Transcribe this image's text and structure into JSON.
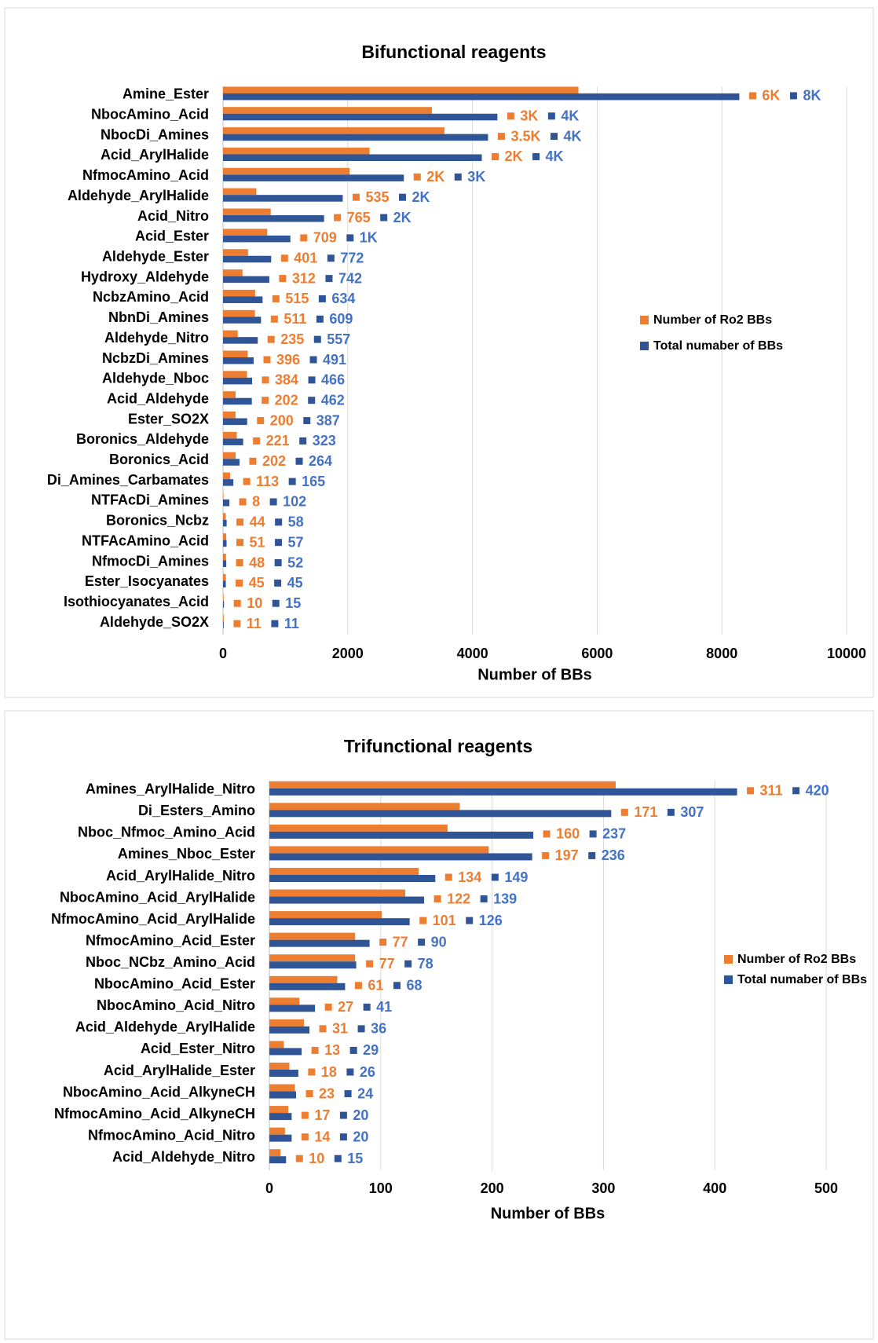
{
  "chart_data": [
    {
      "type": "bar",
      "orientation": "horizontal",
      "title": "Bifunctional reagents",
      "x_label": "Number of BBs",
      "categories": [
        "Amine_Ester",
        "NbocAmino_Acid",
        "NbocDi_Amines",
        "Acid_ArylHalide",
        "NfmocAmino_Acid",
        "Aldehyde_ArylHalide",
        "Acid_Nitro",
        "Acid_Ester",
        "Aldehyde_Ester",
        "Hydroxy_Aldehyde",
        "NcbzAmino_Acid",
        "NbnDi_Amines",
        "Aldehyde_Nitro",
        "NcbzDi_Amines",
        "Aldehyde_Nboc",
        "Acid_Aldehyde",
        "Ester_SO2X",
        "Boronics_Aldehyde",
        "Boronics_Acid",
        "Di_Amines_Carbamates",
        "NTFAcDi_Amines",
        "Boronics_Ncbz",
        "NTFAcAmino_Acid",
        "NfmocDi_Amines",
        "Ester_Isocyanates",
        "Isothiocyanates_Acid",
        "Aldehyde_SO2X"
      ],
      "series": [
        {
          "name": "Number of Ro2 BBs",
          "color": "#ED7D31",
          "label_color": "#ED7D31",
          "values": [
            5700,
            3350,
            3550,
            2350,
            2030,
            535,
            765,
            709,
            401,
            312,
            515,
            511,
            235,
            396,
            384,
            202,
            200,
            221,
            202,
            113,
            8,
            44,
            51,
            48,
            45,
            10,
            11
          ],
          "value_labels": [
            "6K",
            "3K",
            "3.5K",
            "2K",
            "2K",
            "535",
            "765",
            "709",
            "401",
            "312",
            "515",
            "511",
            "235",
            "396",
            "384",
            "202",
            "200",
            "221",
            "202",
            "113",
            "8",
            "44",
            "51",
            "48",
            "45",
            "10",
            "11"
          ]
        },
        {
          "name": "Total numaber of BBs",
          "color": "#2F5597",
          "label_color": "#4472C4",
          "values": [
            8280,
            4400,
            4250,
            4150,
            2900,
            1920,
            1620,
            1080,
            772,
            742,
            634,
            609,
            557,
            491,
            466,
            462,
            387,
            323,
            264,
            165,
            102,
            58,
            57,
            52,
            45,
            15,
            11
          ],
          "value_labels": [
            "8K",
            "4K",
            "4K",
            "4K",
            "3K",
            "2K",
            "2K",
            "1K",
            "772",
            "742",
            "634",
            "609",
            "557",
            "491",
            "466",
            "462",
            "387",
            "323",
            "264",
            "165",
            "102",
            "58",
            "57",
            "52",
            "45",
            "15",
            "11"
          ]
        }
      ],
      "xlim": [
        0,
        10000
      ],
      "xticks": [
        0,
        2000,
        4000,
        6000,
        8000,
        10000
      ],
      "grid": true,
      "legend": "right"
    },
    {
      "type": "bar",
      "orientation": "horizontal",
      "title": "Trifunctional reagents",
      "x_label": "Number of BBs",
      "categories": [
        "Amines_ArylHalide_Nitro",
        "Di_Esters_Amino",
        "Nboc_Nfmoc_Amino_Acid",
        "Amines_Nboc_Ester",
        "Acid_ArylHalide_Nitro",
        "NbocAmino_Acid_ArylHalide",
        "NfmocAmino_Acid_ArylHalide",
        "NfmocAmino_Acid_Ester",
        "Nboc_NCbz_Amino_Acid",
        "NbocAmino_Acid_Ester",
        "NbocAmino_Acid_Nitro",
        "Acid_Aldehyde_ArylHalide",
        "Acid_Ester_Nitro",
        "Acid_ArylHalide_Ester",
        "NbocAmino_Acid_AlkyneCH",
        "NfmocAmino_Acid_AlkyneCH",
        "NfmocAmino_Acid_Nitro",
        "Acid_Aldehyde_Nitro"
      ],
      "series": [
        {
          "name": "Number of Ro2 BBs",
          "color": "#ED7D31",
          "label_color": "#ED7D31",
          "values": [
            311,
            171,
            160,
            197,
            134,
            122,
            101,
            77,
            77,
            61,
            27,
            31,
            13,
            18,
            23,
            17,
            14,
            10
          ]
        },
        {
          "name": "Total numaber of BBs",
          "color": "#2F5597",
          "label_color": "#4472C4",
          "values": [
            420,
            307,
            237,
            236,
            149,
            139,
            126,
            90,
            78,
            68,
            41,
            36,
            29,
            26,
            24,
            20,
            20,
            15
          ]
        }
      ],
      "xlim": [
        0,
        500
      ],
      "xticks": [
        0,
        100,
        200,
        300,
        400,
        500
      ],
      "grid": true,
      "legend": "right"
    }
  ]
}
